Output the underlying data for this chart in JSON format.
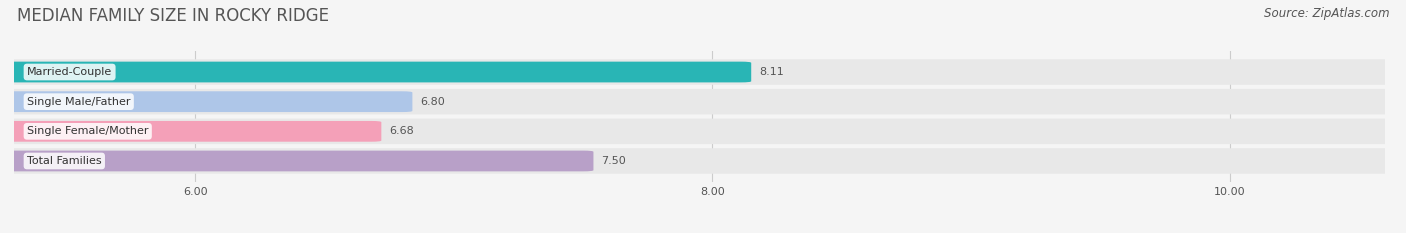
{
  "title": "MEDIAN FAMILY SIZE IN ROCKY RIDGE",
  "source": "Source: ZipAtlas.com",
  "categories": [
    "Married-Couple",
    "Single Male/Father",
    "Single Female/Mother",
    "Total Families"
  ],
  "values": [
    8.11,
    6.8,
    6.68,
    7.5
  ],
  "bar_colors": [
    "#29b5b5",
    "#aec6e8",
    "#f4a0b8",
    "#b8a0c8"
  ],
  "xlim_left": 5.3,
  "xlim_right": 10.6,
  "xticks": [
    6.0,
    8.0,
    10.0
  ],
  "xtick_labels": [
    "6.00",
    "8.00",
    "10.00"
  ],
  "bar_height": 0.62,
  "row_bg_color": "#e8e8e8",
  "background_color": "#f5f5f5",
  "plot_bg_color": "#f5f5f5",
  "title_fontsize": 12,
  "source_fontsize": 8.5,
  "label_fontsize": 8,
  "value_fontsize": 8,
  "tick_fontsize": 8,
  "grid_color": "#cccccc",
  "text_color": "#555555",
  "title_color": "#555555"
}
